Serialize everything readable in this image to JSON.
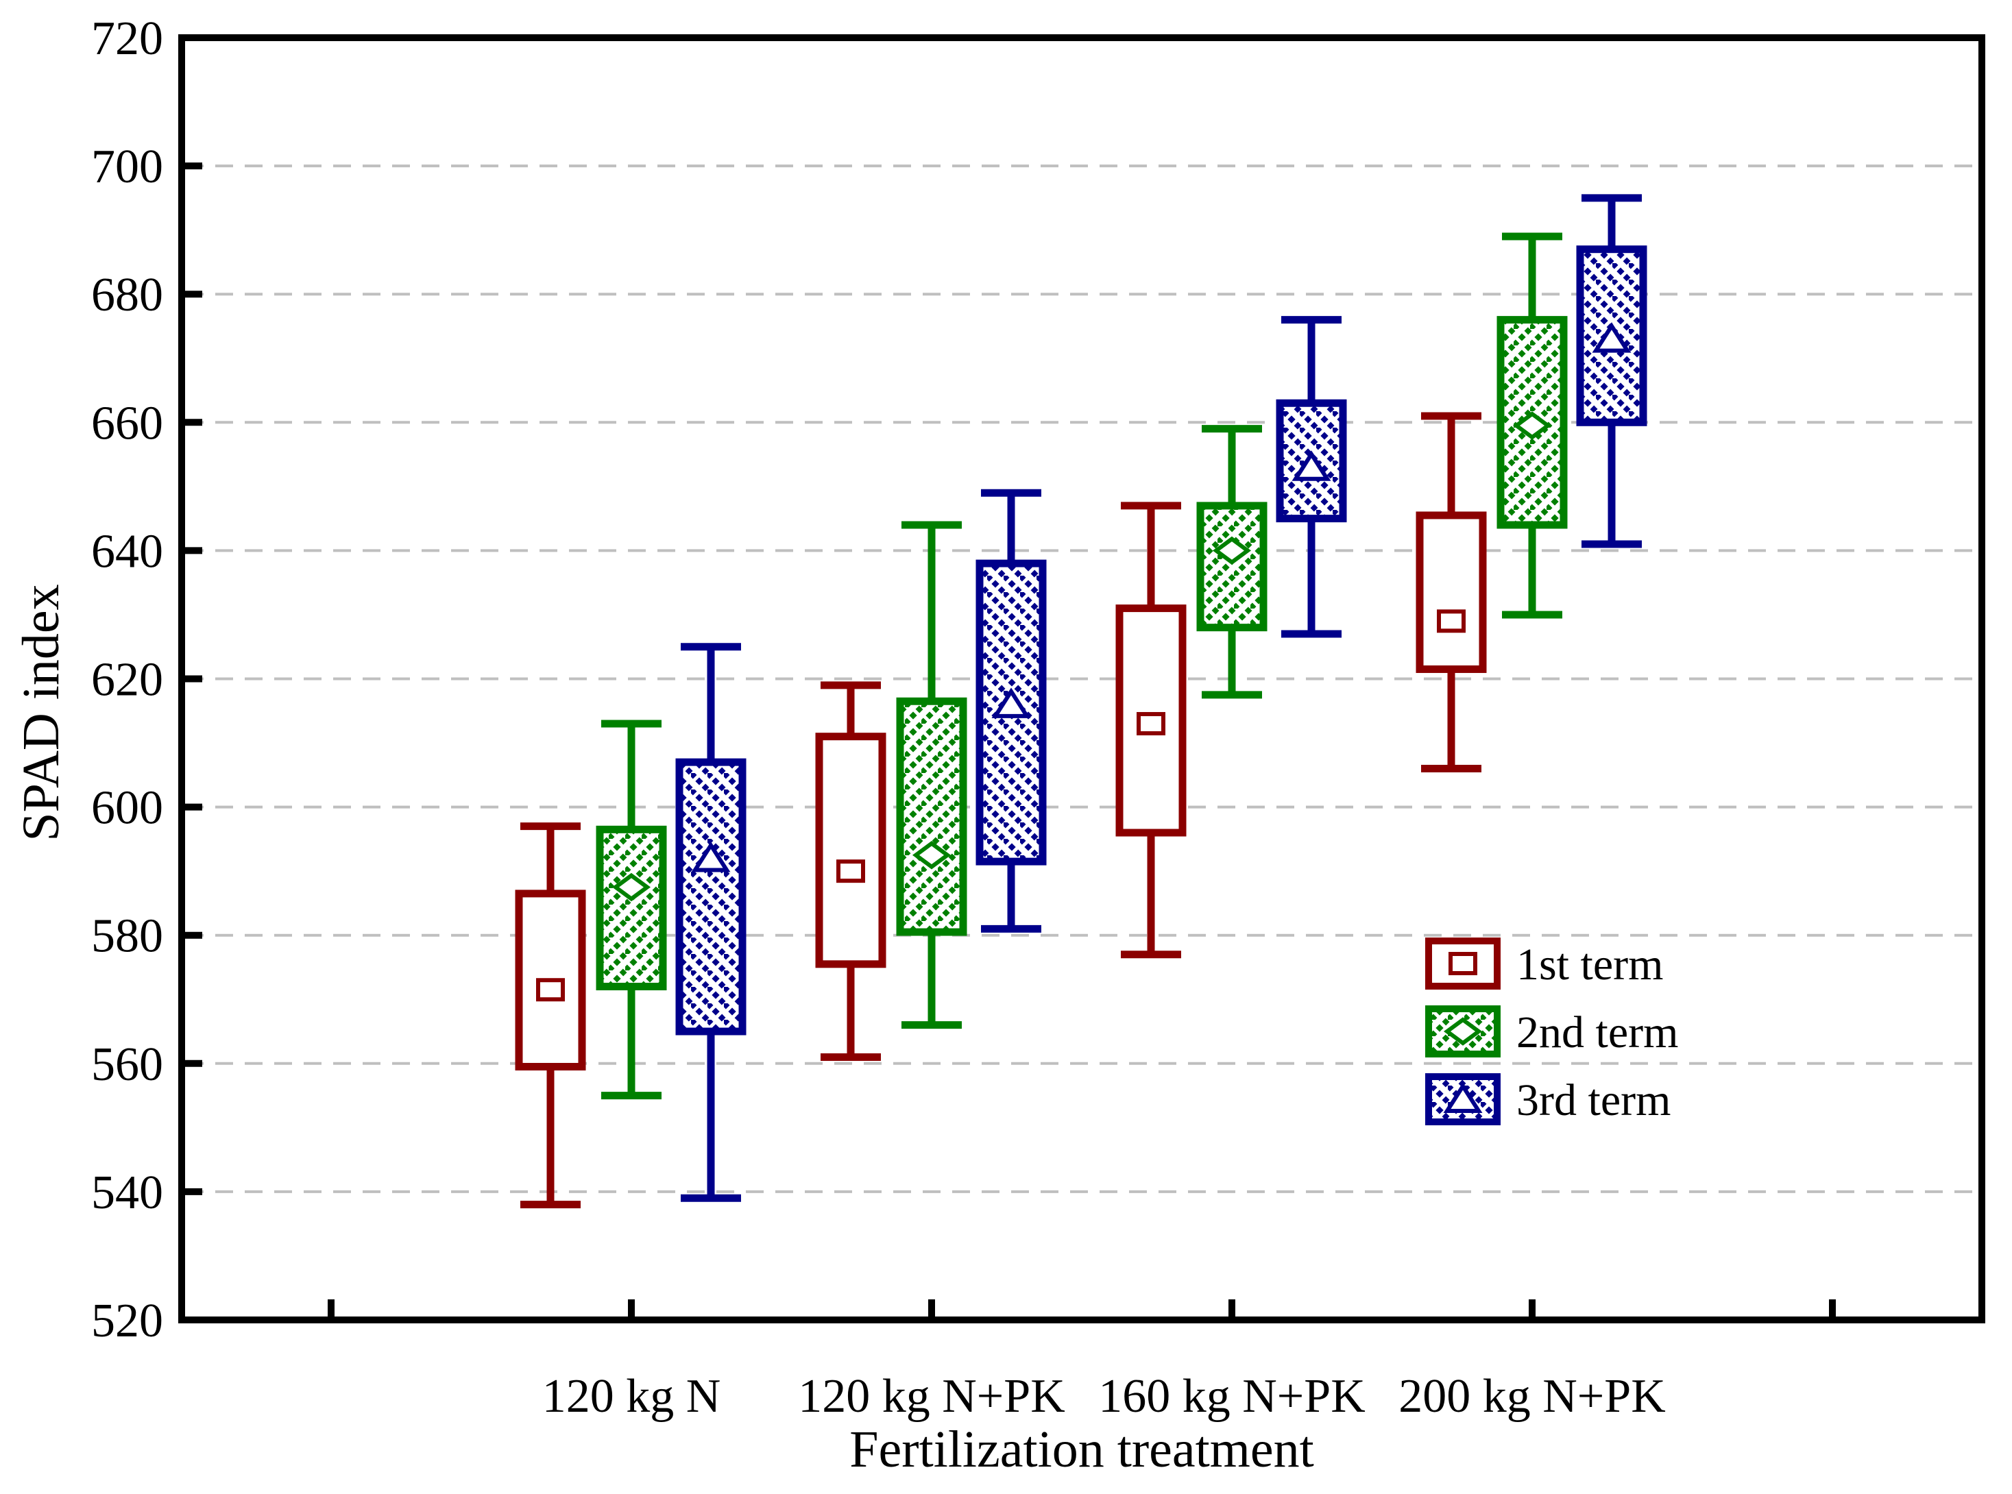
{
  "chart_data": {
    "type": "boxplot",
    "title": "",
    "xlabel": "Fertilization treatment",
    "ylabel": "SPAD index",
    "ylim": [
      520,
      720
    ],
    "ytick_step": 20,
    "yticks": [
      520,
      540,
      560,
      580,
      600,
      620,
      640,
      660,
      680,
      700,
      720
    ],
    "grid": "horizontal dashed, at every 20 units, light gray",
    "categories": [
      "120 kg N",
      "120 kg N+PK",
      "160 kg N+PK",
      "200 kg N+PK"
    ],
    "legend_position": "inside lower-right",
    "colors": {
      "series1": "#8B0000",
      "series2": "#008000",
      "series3": "#00008B",
      "gridline": "#BFBFBF",
      "axis": "#000000",
      "background": "#FFFFFF"
    },
    "series": [
      {
        "name": "1st term",
        "color": "#8B0000",
        "marker": "square",
        "hatch": "none",
        "values": [
          {
            "whisker_low": 538,
            "q1": 559.5,
            "mean": 571.5,
            "q3": 586.5,
            "whisker_high": 597
          },
          {
            "whisker_low": 561,
            "q1": 575.5,
            "mean": 590,
            "q3": 611,
            "whisker_high": 619
          },
          {
            "whisker_low": 577,
            "q1": 596,
            "mean": 613,
            "q3": 631,
            "whisker_high": 647
          },
          {
            "whisker_low": 606,
            "q1": 621.5,
            "mean": 629,
            "q3": 645.5,
            "whisker_high": 661
          }
        ]
      },
      {
        "name": "2nd term",
        "color": "#008000",
        "marker": "diamond",
        "hatch": "forward-diagonal",
        "values": [
          {
            "whisker_low": 555,
            "q1": 572,
            "mean": 587.5,
            "q3": 596.5,
            "whisker_high": 613
          },
          {
            "whisker_low": 566,
            "q1": 580.5,
            "mean": 592.5,
            "q3": 616.5,
            "whisker_high": 644
          },
          {
            "whisker_low": 617.5,
            "q1": 628,
            "mean": 640,
            "q3": 647,
            "whisker_high": 659
          },
          {
            "whisker_low": 630,
            "q1": 644,
            "mean": 659.5,
            "q3": 676,
            "whisker_high": 689
          }
        ]
      },
      {
        "name": "3rd term",
        "color": "#00008B",
        "marker": "triangle",
        "hatch": "backward-diagonal",
        "values": [
          {
            "whisker_low": 539,
            "q1": 565,
            "mean": 592,
            "q3": 607,
            "whisker_high": 625
          },
          {
            "whisker_low": 581,
            "q1": 591.5,
            "mean": 616,
            "q3": 638,
            "whisker_high": 649
          },
          {
            "whisker_low": 627,
            "q1": 645,
            "mean": 653,
            "q3": 663,
            "whisker_high": 676
          },
          {
            "whisker_low": 641,
            "q1": 660,
            "mean": 673,
            "q3": 687,
            "whisker_high": 695
          }
        ]
      }
    ],
    "legend": {
      "items": [
        {
          "label": "1st term"
        },
        {
          "label": "2nd term"
        },
        {
          "label": "3rd term"
        }
      ]
    }
  }
}
